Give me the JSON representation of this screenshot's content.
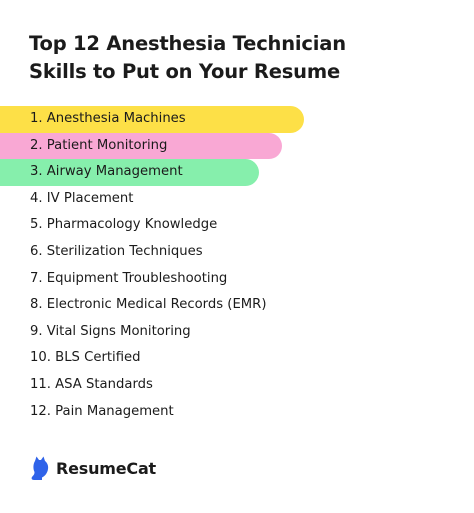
{
  "title": {
    "line1": "Top 12 Anesthesia Technician",
    "line2": "Skills to Put on Your Resume"
  },
  "skills": [
    {
      "label": "1. Anesthesia Machines",
      "highlight": "#fde047"
    },
    {
      "label": "2. Patient Monitoring",
      "highlight": "#f9a8d4"
    },
    {
      "label": "3. Airway Management",
      "highlight": "#86efac"
    },
    {
      "label": "4. IV Placement",
      "highlight": null
    },
    {
      "label": "5. Pharmacology Knowledge",
      "highlight": null
    },
    {
      "label": "6. Sterilization Techniques",
      "highlight": null
    },
    {
      "label": "7. Equipment Troubleshooting",
      "highlight": null
    },
    {
      "label": "8. Electronic Medical Records (EMR)",
      "highlight": null
    },
    {
      "label": "9. Vital Signs Monitoring",
      "highlight": null
    },
    {
      "label": "10. BLS Certified",
      "highlight": null
    },
    {
      "label": "11. ASA Standards",
      "highlight": null
    },
    {
      "label": "12. Pain Management",
      "highlight": null
    }
  ],
  "brand": {
    "name": "ResumeCat",
    "icon": "cat-icon",
    "color": "#2f63e9"
  }
}
